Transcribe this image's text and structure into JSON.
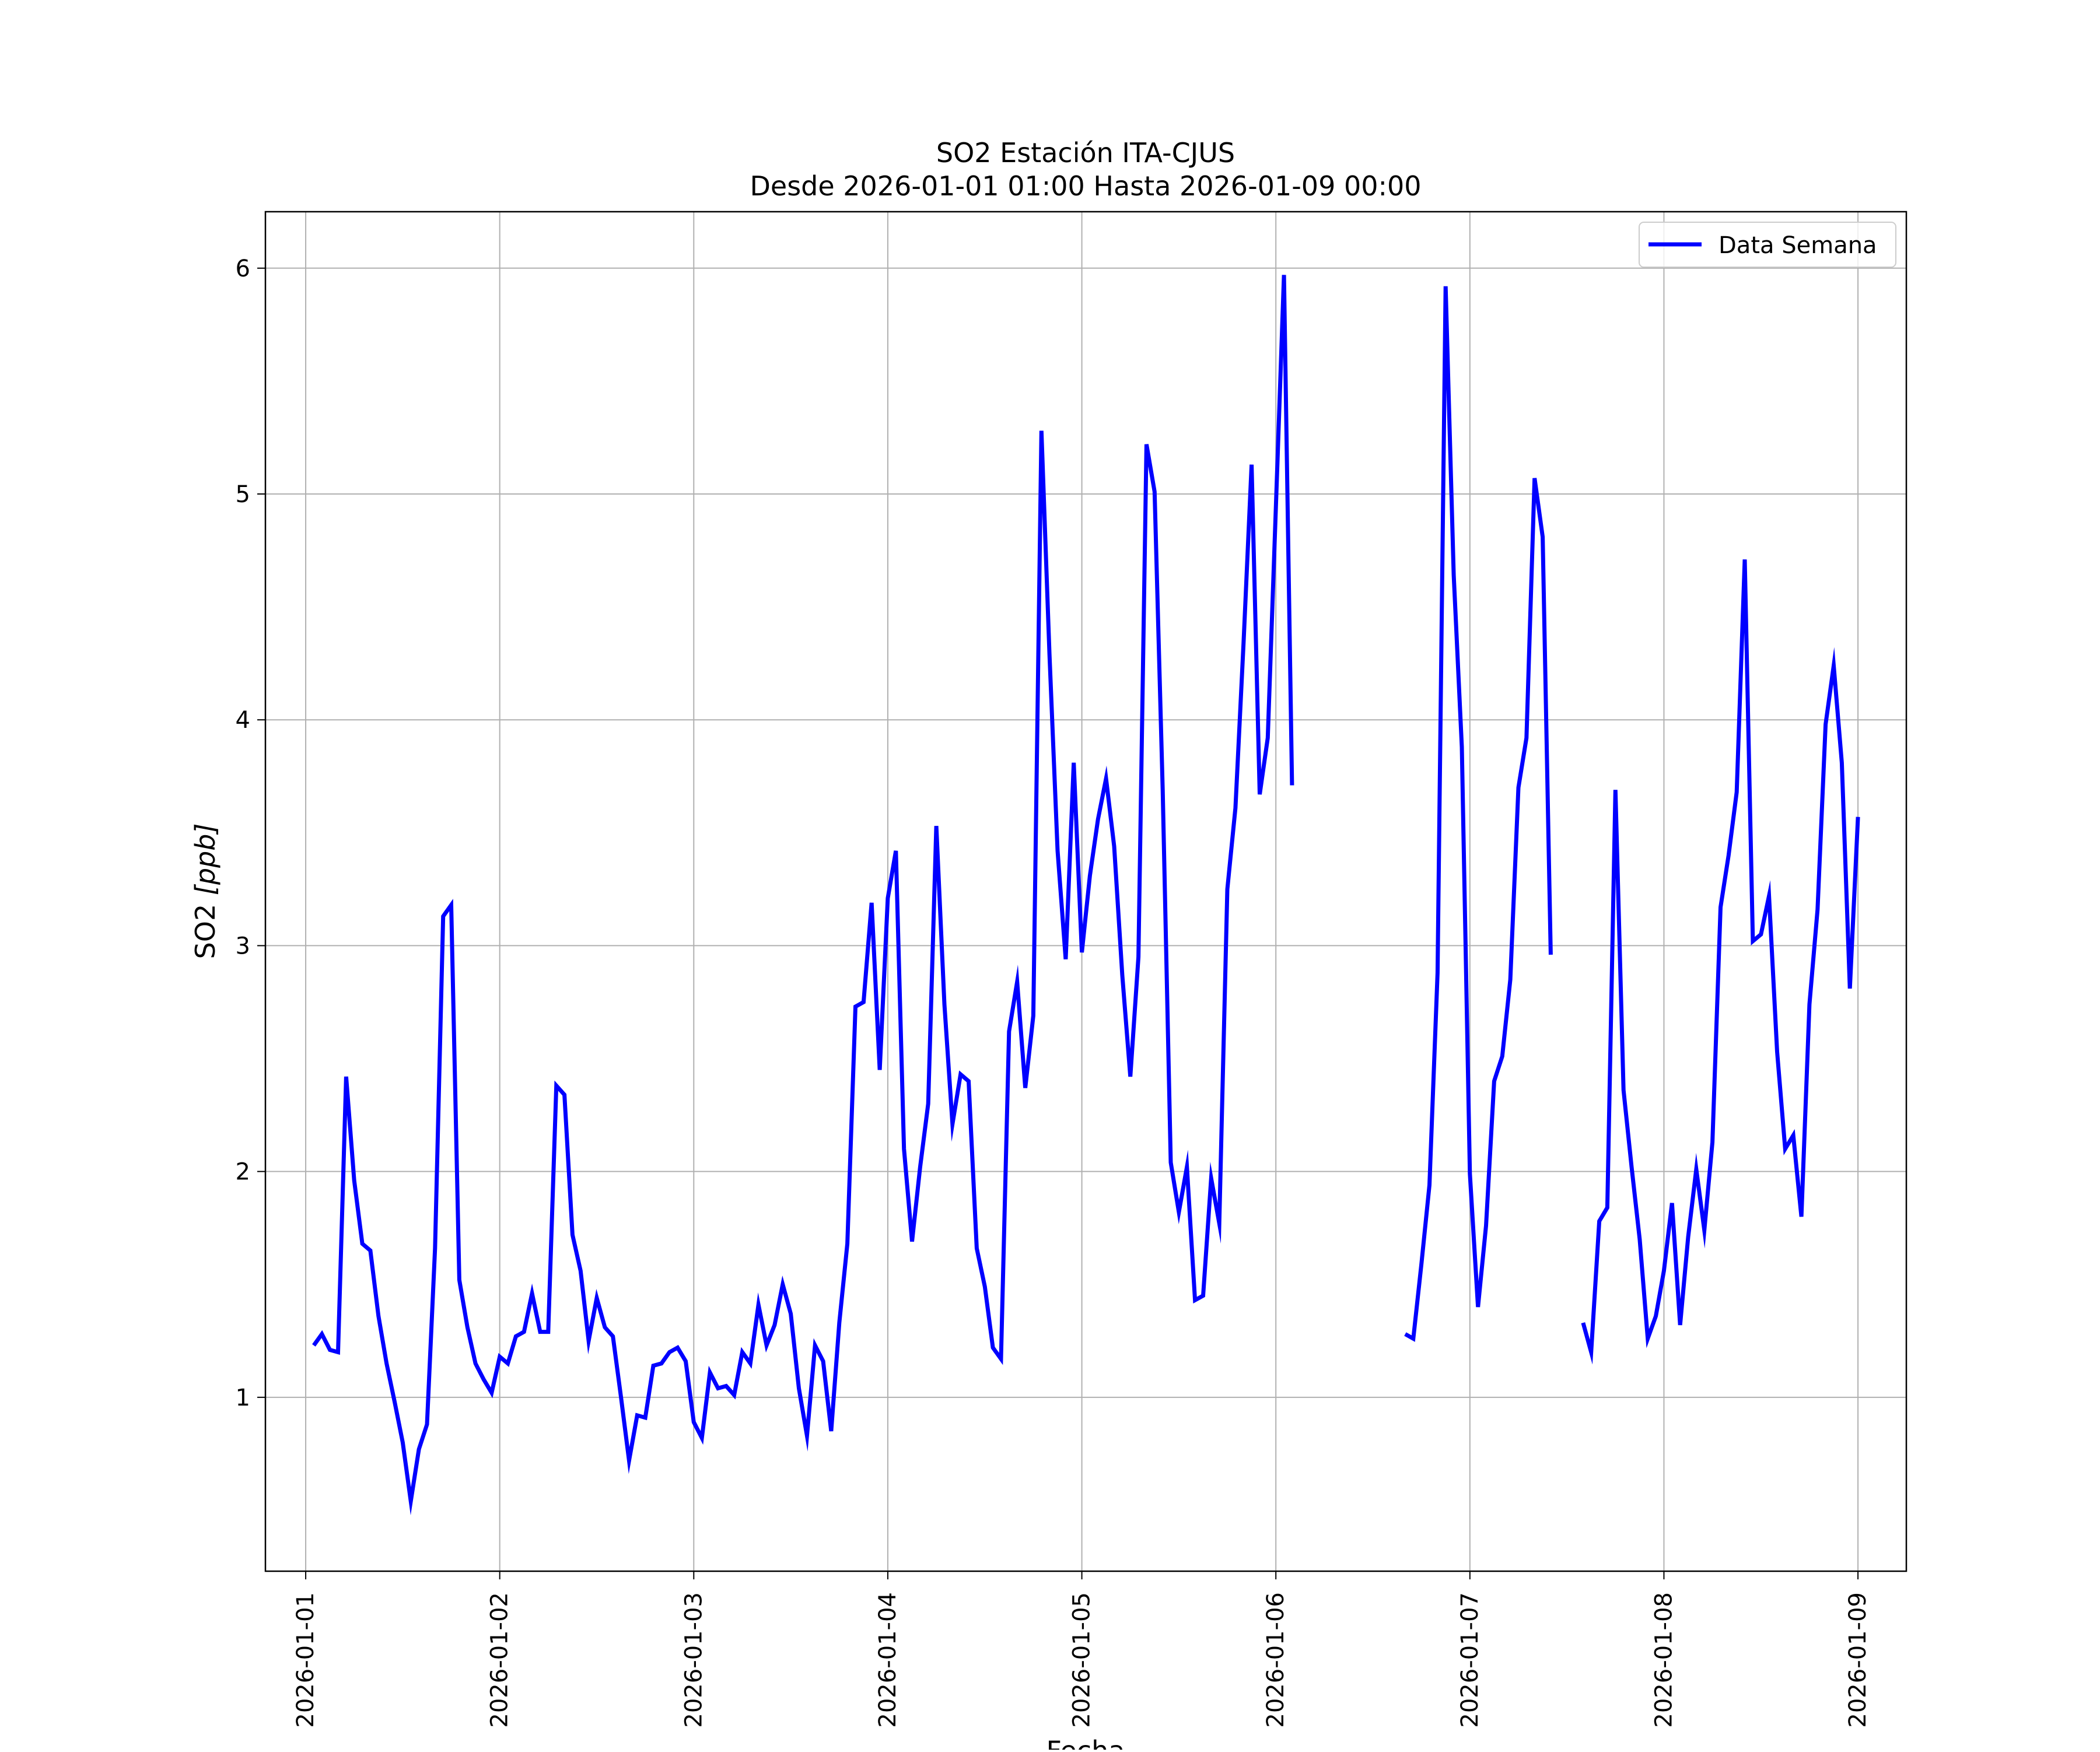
{
  "chart_data": {
    "type": "line",
    "title": "SO2 Estación ITA-CJUS",
    "subtitle": "Desde 2026-01-01 01:00 Hasta 2026-01-09 00:00",
    "xlabel": "Fecha",
    "ylabel": "SO2 [ppb]",
    "ylabel_main": "SO2 ",
    "ylabel_unit": "[ppb]",
    "xlim": [
      "2025-12-31 19:01",
      "2026-01-09 05:59"
    ],
    "ylim": [
      0.23,
      6.25
    ],
    "grid": true,
    "legend_position": "upper right",
    "line_color": "#0000ff",
    "x_tick_labels": [
      "2026-01-01",
      "2026-01-02",
      "2026-01-03",
      "2026-01-04",
      "2026-01-05",
      "2026-01-06",
      "2026-01-07",
      "2026-01-08",
      "2026-01-09"
    ],
    "y_tick_labels": [
      "1",
      "2",
      "3",
      "4",
      "5",
      "6"
    ],
    "y_ticks": [
      1,
      2,
      3,
      4,
      5,
      6
    ],
    "series": [
      {
        "name": "Data Semana",
        "color": "#0000ff",
        "x": [
          "2026-01-01 01:00",
          "2026-01-01 02:00",
          "2026-01-01 03:00",
          "2026-01-01 04:00",
          "2026-01-01 05:00",
          "2026-01-01 06:00",
          "2026-01-01 07:00",
          "2026-01-01 08:00",
          "2026-01-01 09:00",
          "2026-01-01 10:00",
          "2026-01-01 11:00",
          "2026-01-01 12:00",
          "2026-01-01 13:00",
          "2026-01-01 14:00",
          "2026-01-01 15:00",
          "2026-01-01 16:00",
          "2026-01-01 17:00",
          "2026-01-01 18:00",
          "2026-01-01 19:00",
          "2026-01-01 20:00",
          "2026-01-01 21:00",
          "2026-01-01 22:00",
          "2026-01-01 23:00",
          "2026-01-02 00:00",
          "2026-01-02 01:00",
          "2026-01-02 02:00",
          "2026-01-02 03:00",
          "2026-01-02 04:00",
          "2026-01-02 05:00",
          "2026-01-02 06:00",
          "2026-01-02 07:00",
          "2026-01-02 08:00",
          "2026-01-02 09:00",
          "2026-01-02 10:00",
          "2026-01-02 11:00",
          "2026-01-02 12:00",
          "2026-01-02 13:00",
          "2026-01-02 14:00",
          "2026-01-02 15:00",
          "2026-01-02 16:00",
          "2026-01-02 17:00",
          "2026-01-02 18:00",
          "2026-01-02 19:00",
          "2026-01-02 20:00",
          "2026-01-02 21:00",
          "2026-01-02 22:00",
          "2026-01-02 23:00",
          "2026-01-03 00:00",
          "2026-01-03 01:00",
          "2026-01-03 02:00",
          "2026-01-03 03:00",
          "2026-01-03 04:00",
          "2026-01-03 05:00",
          "2026-01-03 06:00",
          "2026-01-03 07:00",
          "2026-01-03 08:00",
          "2026-01-03 09:00",
          "2026-01-03 10:00",
          "2026-01-03 11:00",
          "2026-01-03 12:00",
          "2026-01-03 13:00",
          "2026-01-03 14:00",
          "2026-01-03 15:00",
          "2026-01-03 16:00",
          "2026-01-03 17:00",
          "2026-01-03 18:00",
          "2026-01-03 19:00",
          "2026-01-03 20:00",
          "2026-01-03 21:00",
          "2026-01-03 22:00",
          "2026-01-03 23:00",
          "2026-01-04 00:00",
          "2026-01-04 01:00",
          "2026-01-04 02:00",
          "2026-01-04 03:00",
          "2026-01-04 04:00",
          "2026-01-04 05:00",
          "2026-01-04 06:00",
          "2026-01-04 07:00",
          "2026-01-04 08:00",
          "2026-01-04 09:00",
          "2026-01-04 10:00",
          "2026-01-04 11:00",
          "2026-01-04 12:00",
          "2026-01-04 13:00",
          "2026-01-04 14:00",
          "2026-01-04 15:00",
          "2026-01-04 16:00",
          "2026-01-04 17:00",
          "2026-01-04 18:00",
          "2026-01-04 19:00",
          "2026-01-04 20:00",
          "2026-01-04 21:00",
          "2026-01-04 22:00",
          "2026-01-04 23:00",
          "2026-01-05 00:00",
          "2026-01-05 01:00",
          "2026-01-05 02:00",
          "2026-01-05 03:00",
          "2026-01-05 04:00",
          "2026-01-05 05:00",
          "2026-01-05 06:00",
          "2026-01-05 07:00",
          "2026-01-05 08:00",
          "2026-01-05 09:00",
          "2026-01-05 10:00",
          "2026-01-05 11:00",
          "2026-01-05 12:00",
          "2026-01-05 13:00",
          "2026-01-05 14:00",
          "2026-01-05 15:00",
          "2026-01-05 16:00",
          "2026-01-05 17:00",
          "2026-01-05 18:00",
          "2026-01-05 19:00",
          "2026-01-05 20:00",
          "2026-01-05 21:00",
          "2026-01-05 22:00",
          "2026-01-05 23:00",
          "2026-01-06 00:00",
          "2026-01-06 01:00",
          "2026-01-06 02:00",
          "2026-01-06 16:00",
          "2026-01-06 17:00",
          "2026-01-06 18:00",
          "2026-01-06 19:00",
          "2026-01-06 20:00",
          "2026-01-06 21:00",
          "2026-01-06 22:00",
          "2026-01-06 23:00",
          "2026-01-07 00:00",
          "2026-01-07 01:00",
          "2026-01-07 02:00",
          "2026-01-07 03:00",
          "2026-01-07 04:00",
          "2026-01-07 05:00",
          "2026-01-07 06:00",
          "2026-01-07 07:00",
          "2026-01-07 08:00",
          "2026-01-07 09:00",
          "2026-01-07 10:00",
          "2026-01-07 14:00",
          "2026-01-07 15:00",
          "2026-01-07 16:00",
          "2026-01-07 17:00",
          "2026-01-07 18:00",
          "2026-01-07 19:00",
          "2026-01-07 20:00",
          "2026-01-07 21:00",
          "2026-01-07 22:00",
          "2026-01-07 23:00",
          "2026-01-08 00:00",
          "2026-01-08 01:00",
          "2026-01-08 02:00",
          "2026-01-08 03:00",
          "2026-01-08 04:00",
          "2026-01-08 05:00",
          "2026-01-08 06:00",
          "2026-01-08 07:00",
          "2026-01-08 08:00",
          "2026-01-08 09:00",
          "2026-01-08 10:00",
          "2026-01-08 11:00",
          "2026-01-08 12:00",
          "2026-01-08 13:00",
          "2026-01-08 14:00",
          "2026-01-08 15:00",
          "2026-01-08 16:00",
          "2026-01-08 17:00",
          "2026-01-08 18:00",
          "2026-01-08 19:00",
          "2026-01-08 20:00",
          "2026-01-08 21:00",
          "2026-01-08 22:00",
          "2026-01-08 23:00",
          "2026-01-09 00:00"
        ],
        "values": [
          1.23,
          1.28,
          1.21,
          1.2,
          2.42,
          1.96,
          1.68,
          1.65,
          1.36,
          1.15,
          0.98,
          0.8,
          0.54,
          0.77,
          0.88,
          1.66,
          3.13,
          3.18,
          1.52,
          1.31,
          1.15,
          1.08,
          1.02,
          1.18,
          1.15,
          1.27,
          1.29,
          1.46,
          1.29,
          1.29,
          2.38,
          2.34,
          1.72,
          1.56,
          1.25,
          1.44,
          1.31,
          1.27,
          1.0,
          0.72,
          0.92,
          0.91,
          1.14,
          1.15,
          1.2,
          1.22,
          1.16,
          0.89,
          0.82,
          1.11,
          1.04,
          1.05,
          1.01,
          1.2,
          1.15,
          1.41,
          1.23,
          1.32,
          1.5,
          1.37,
          1.04,
          0.83,
          1.23,
          1.16,
          0.85,
          1.33,
          1.68,
          2.73,
          2.75,
          3.19,
          2.45,
          3.21,
          3.42,
          2.1,
          1.69,
          2.02,
          2.3,
          3.53,
          2.74,
          2.21,
          2.43,
          2.4,
          1.66,
          1.49,
          1.22,
          1.17,
          2.62,
          2.84,
          2.37,
          2.69,
          5.28,
          4.29,
          3.42,
          2.94,
          3.81,
          2.97,
          3.31,
          3.56,
          3.74,
          3.44,
          2.87,
          2.42,
          2.95,
          5.22,
          5.01,
          3.69,
          2.04,
          1.82,
          2.02,
          1.43,
          1.45,
          1.97,
          1.77,
          3.25,
          3.61,
          4.34,
          5.13,
          3.67,
          3.92,
          4.94,
          5.97,
          3.71,
          1.28,
          1.26,
          1.59,
          1.94,
          2.88,
          5.92,
          4.64,
          3.88,
          1.99,
          1.4,
          1.76,
          2.4,
          2.51,
          2.85,
          3.7,
          3.92,
          5.07,
          4.81,
          2.96,
          1.33,
          1.2,
          1.78,
          1.84,
          3.69,
          2.36,
          2.02,
          1.7,
          1.26,
          1.36,
          1.56,
          1.86,
          1.32,
          1.71,
          2.01,
          1.74,
          2.13,
          3.17,
          3.4,
          3.68,
          4.71,
          3.02,
          3.05,
          3.22,
          2.53,
          2.1,
          2.16,
          1.8,
          2.74,
          3.16,
          3.98,
          4.24,
          3.81,
          2.81,
          3.57
        ]
      }
    ]
  }
}
